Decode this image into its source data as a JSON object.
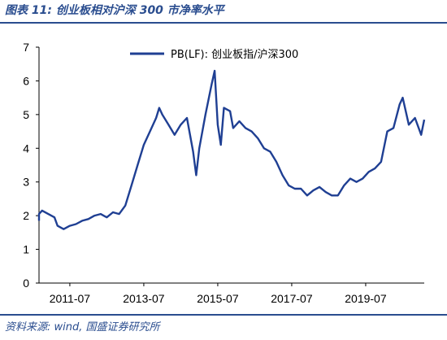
{
  "figure": {
    "title": "图表 11:  创业板相对沪深 300 市净率水平",
    "source": "资料来源: wind,  国盛证券研究所"
  },
  "chart_data": {
    "type": "line",
    "title": "",
    "xlabel": "",
    "ylabel": "",
    "xlim": [
      "2010-09",
      "2021-02"
    ],
    "ylim": [
      0,
      7
    ],
    "y_ticks": [
      0,
      1,
      2,
      3,
      4,
      5,
      6,
      7
    ],
    "x_ticks": [
      "2011-07",
      "2013-07",
      "2015-07",
      "2017-07",
      "2019-07"
    ],
    "grid": false,
    "legend": "top-center",
    "color": "#1f3f93",
    "series": [
      {
        "name": "PB(LF):  创业板指/沪深300",
        "points": [
          [
            "2010-06",
            1.85
          ],
          [
            "2010-08",
            2.05
          ],
          [
            "2010-10",
            2.15
          ],
          [
            "2010-12",
            2.05
          ],
          [
            "2011-02",
            1.95
          ],
          [
            "2011-03",
            1.7
          ],
          [
            "2011-05",
            1.6
          ],
          [
            "2011-07",
            1.7
          ],
          [
            "2011-09",
            1.75
          ],
          [
            "2011-11",
            1.85
          ],
          [
            "2012-01",
            1.9
          ],
          [
            "2012-03",
            2.0
          ],
          [
            "2012-05",
            2.05
          ],
          [
            "2012-07",
            1.95
          ],
          [
            "2012-09",
            2.1
          ],
          [
            "2012-11",
            2.05
          ],
          [
            "2013-01",
            2.3
          ],
          [
            "2013-03",
            2.9
          ],
          [
            "2013-05",
            3.5
          ],
          [
            "2013-07",
            4.1
          ],
          [
            "2013-09",
            4.5
          ],
          [
            "2013-11",
            4.9
          ],
          [
            "2013-12",
            5.2
          ],
          [
            "2014-01",
            5.0
          ],
          [
            "2014-03",
            4.7
          ],
          [
            "2014-05",
            4.4
          ],
          [
            "2014-07",
            4.7
          ],
          [
            "2014-09",
            4.9
          ],
          [
            "2014-11",
            3.9
          ],
          [
            "2014-12",
            3.2
          ],
          [
            "2015-01",
            4.0
          ],
          [
            "2015-03",
            5.0
          ],
          [
            "2015-05",
            5.9
          ],
          [
            "2015-06",
            6.3
          ],
          [
            "2015-07",
            4.7
          ],
          [
            "2015-08",
            4.1
          ],
          [
            "2015-09",
            5.2
          ],
          [
            "2015-11",
            5.1
          ],
          [
            "2015-12",
            4.6
          ],
          [
            "2016-02",
            4.8
          ],
          [
            "2016-04",
            4.6
          ],
          [
            "2016-06",
            4.5
          ],
          [
            "2016-08",
            4.3
          ],
          [
            "2016-10",
            4.0
          ],
          [
            "2016-12",
            3.9
          ],
          [
            "2017-02",
            3.6
          ],
          [
            "2017-04",
            3.2
          ],
          [
            "2017-06",
            2.9
          ],
          [
            "2017-08",
            2.8
          ],
          [
            "2017-10",
            2.8
          ],
          [
            "2017-12",
            2.6
          ],
          [
            "2018-02",
            2.75
          ],
          [
            "2018-04",
            2.85
          ],
          [
            "2018-06",
            2.7
          ],
          [
            "2018-08",
            2.6
          ],
          [
            "2018-10",
            2.6
          ],
          [
            "2018-12",
            2.9
          ],
          [
            "2019-02",
            3.1
          ],
          [
            "2019-04",
            3.0
          ],
          [
            "2019-06",
            3.1
          ],
          [
            "2019-08",
            3.3
          ],
          [
            "2019-10",
            3.4
          ],
          [
            "2019-12",
            3.6
          ],
          [
            "2020-02",
            4.5
          ],
          [
            "2020-04",
            4.6
          ],
          [
            "2020-06",
            5.3
          ],
          [
            "2020-07",
            5.5
          ],
          [
            "2020-09",
            4.7
          ],
          [
            "2020-11",
            4.9
          ],
          [
            "2021-01",
            4.4
          ],
          [
            "2021-02",
            4.85
          ]
        ]
      }
    ]
  }
}
